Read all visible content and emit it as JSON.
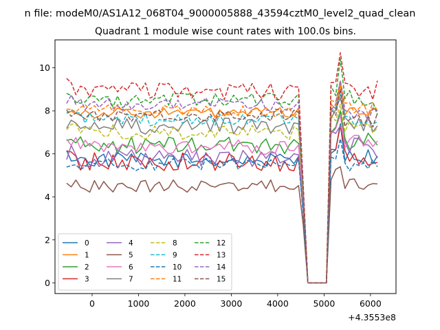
{
  "chart_data": {
    "type": "line",
    "suptitle": "n file: modeM0/AS1A12_068T04_9000005888_43594cztM0_level2_quad_clean",
    "title": "Quadrant 1 module wise count rates with 100.0s bins.",
    "xlabel": "",
    "ylabel": "",
    "x_offset_label": "+4.3553e8",
    "xlim": [
      -800,
      6550
    ],
    "ylim": [
      -0.5,
      11.3
    ],
    "xticks": [
      0,
      1000,
      2000,
      3000,
      4000,
      5000,
      6000
    ],
    "xtick_labels": [
      "0",
      "1000",
      "2000",
      "3000",
      "4000",
      "5000",
      "6000"
    ],
    "yticks": [
      0,
      2,
      4,
      6,
      8,
      10
    ],
    "ytick_labels": [
      "0",
      "2",
      "4",
      "6",
      "8",
      "10"
    ],
    "grid": false,
    "legend_position": "lower-left",
    "legend_columns": 4,
    "x": {
      "start": -550,
      "step": 100,
      "count": 68,
      "gap_start": 4600,
      "gap_end": 5100,
      "gap_value": 0
    },
    "series": [
      {
        "name": "0",
        "color": "#1f77b4",
        "dash": "solid",
        "base": 5.7,
        "amp": 0.35,
        "drop": 3.6,
        "post": 6.3,
        "peak": 7.4,
        "end": 5.9,
        "last": 0.05
      },
      {
        "name": "1",
        "color": "#ff7f0e",
        "dash": "solid",
        "base": 7.9,
        "amp": 0.25,
        "drop": 4.2,
        "post": 8.3,
        "peak": 9.2,
        "end": 8.0,
        "last": 0.1
      },
      {
        "name": "2",
        "color": "#2ca02c",
        "dash": "solid",
        "base": 6.4,
        "amp": 0.4,
        "drop": 3.7,
        "post": 7.0,
        "peak": 8.0,
        "end": 6.4,
        "last": 0.05
      },
      {
        "name": "3",
        "color": "#d62728",
        "dash": "solid",
        "base": 5.6,
        "amp": 0.45,
        "drop": 3.3,
        "post": 6.2,
        "peak": 7.3,
        "end": 5.6,
        "last": 0.05
      },
      {
        "name": "4",
        "color": "#9467bd",
        "dash": "solid",
        "base": 5.8,
        "amp": 0.4,
        "drop": 3.5,
        "post": 6.8,
        "peak": 7.3,
        "end": 5.8,
        "last": 0.05
      },
      {
        "name": "5",
        "color": "#8c564b",
        "dash": "solid",
        "base": 4.5,
        "amp": 0.3,
        "drop": 2.7,
        "post": 5.0,
        "peak": 5.4,
        "end": 4.6,
        "last": 0.05
      },
      {
        "name": "6",
        "color": "#e377c2",
        "dash": "solid",
        "base": 6.3,
        "amp": 0.35,
        "drop": 3.8,
        "post": 7.0,
        "peak": 7.8,
        "end": 6.6,
        "last": 0.05
      },
      {
        "name": "7",
        "color": "#7f7f7f",
        "dash": "solid",
        "base": 7.3,
        "amp": 0.4,
        "drop": 4.0,
        "post": 7.8,
        "peak": 8.6,
        "end": 7.3,
        "last": 0.05
      },
      {
        "name": "8",
        "color": "#bcbd22",
        "dash": "dashed",
        "base": 7.0,
        "amp": 0.35,
        "drop": 4.0,
        "post": 7.6,
        "peak": 8.3,
        "end": 7.2,
        "last": 0.05
      },
      {
        "name": "9",
        "color": "#17becf",
        "dash": "dashed",
        "base": 7.6,
        "amp": 0.3,
        "drop": 4.2,
        "post": 8.0,
        "peak": 8.8,
        "end": 7.5,
        "last": 0.05
      },
      {
        "name": "10",
        "color": "#1f77b4",
        "dash": "dashed",
        "base": 5.5,
        "amp": 0.3,
        "drop": 3.2,
        "post": 5.9,
        "peak": 6.7,
        "end": 5.4,
        "last": 0.05
      },
      {
        "name": "11",
        "color": "#ff7f0e",
        "dash": "dashed",
        "base": 8.0,
        "amp": 0.3,
        "drop": 4.3,
        "post": 8.5,
        "peak": 9.4,
        "end": 8.0,
        "last": 0.1
      },
      {
        "name": "12",
        "color": "#2ca02c",
        "dash": "dashed",
        "base": 8.5,
        "amp": 0.35,
        "drop": 4.5,
        "post": 9.0,
        "peak": 10.4,
        "end": 7.8,
        "last": 0.1
      },
      {
        "name": "13",
        "color": "#d62728",
        "dash": "dashed",
        "base": 8.9,
        "amp": 0.4,
        "drop": 4.6,
        "post": 9.3,
        "peak": 10.7,
        "end": 9.4,
        "last": 0.1
      },
      {
        "name": "14",
        "color": "#9467bd",
        "dash": "dashed",
        "base": 8.3,
        "amp": 0.3,
        "drop": 4.4,
        "post": 8.2,
        "peak": 9.4,
        "end": 8.0,
        "last": 0.1
      },
      {
        "name": "15",
        "color": "#8c564b",
        "dash": "dashed",
        "base": 7.8,
        "amp": 0.3,
        "drop": 4.2,
        "post": 7.9,
        "peak": 9.0,
        "end": 7.9,
        "last": 0.1
      }
    ]
  }
}
